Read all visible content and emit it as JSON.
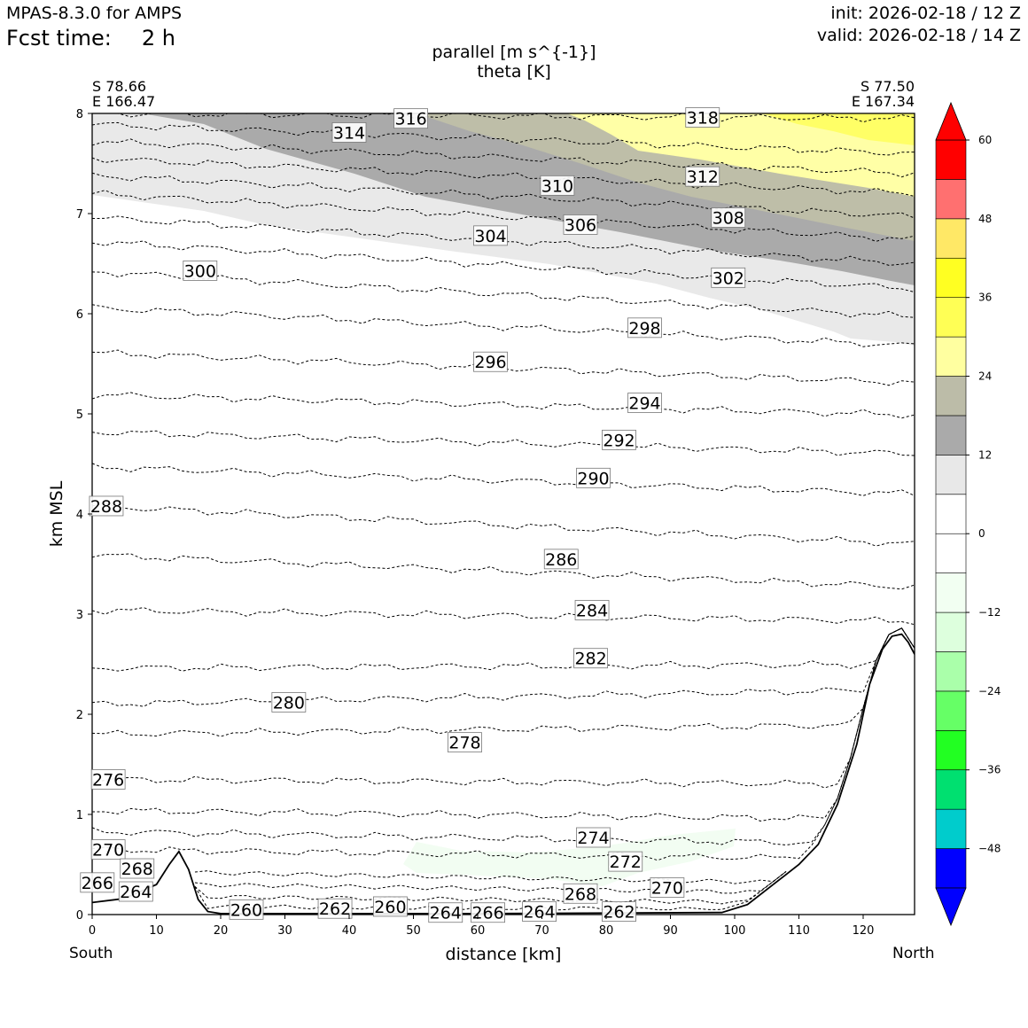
{
  "header": {
    "model": "MPAS-8.3.0 for AMPS",
    "fcst_label": "Fcst time:",
    "fcst_value": "2 h",
    "init": "init: 2026-02-18 / 12 Z",
    "valid": "valid: 2026-02-18 / 14 Z"
  },
  "endpoints": {
    "start_lat": "S 78.66",
    "start_lon": "E 166.47",
    "end_lat": "S 77.50",
    "end_lon": "E 167.34",
    "start_dir": "South",
    "end_dir": "North"
  },
  "chart_data": {
    "type": "cross-section (filled contour + line contour)",
    "title_lines": [
      "parallel [m s^{-1}]",
      "theta [K]"
    ],
    "xlabel": "distance [km]",
    "ylabel": "km MSL",
    "xlim": [
      0,
      128
    ],
    "ylim": [
      0,
      8
    ],
    "xticks": [
      "0",
      "10",
      "20",
      "30",
      "40",
      "50",
      "60",
      "70",
      "80",
      "90",
      "100",
      "110",
      "120"
    ],
    "yticks": [
      "0",
      "1",
      "2",
      "3",
      "4",
      "5",
      "6",
      "7",
      "8"
    ],
    "fill_field": "parallel wind speed [m s^-1]",
    "colorbar": {
      "levels": [
        -54,
        -48,
        -42,
        -36,
        -30,
        -24,
        -18,
        -12,
        -6,
        0,
        6,
        12,
        18,
        24,
        30,
        36,
        42,
        48,
        54,
        60
      ],
      "colors": [
        "#0000ff",
        "#00cccc",
        "#00e070",
        "#22ff22",
        "#66ff66",
        "#aaffaa",
        "#ddffdd",
        "#f2fff2",
        "#ffffff",
        "#ffffff",
        "#e8e8e8",
        "#aaaaaa",
        "#bcbca8",
        "#ffffa0",
        "#ffff55",
        "#ffff22",
        "#ffe866",
        "#ff7070",
        "#ff0000"
      ],
      "tick_labels": [
        "−48",
        "−36",
        "−24",
        "−12",
        "0",
        "12",
        "24",
        "36",
        "48",
        "60"
      ],
      "extend": "both"
    },
    "theta_labels": [
      {
        "value": "316",
        "x": 49.6,
        "z": 7.95
      },
      {
        "value": "318",
        "x": 95.0,
        "z": 7.96
      },
      {
        "value": "314",
        "x": 40.0,
        "z": 7.81
      },
      {
        "value": "310",
        "x": 72.4,
        "z": 7.28
      },
      {
        "value": "312",
        "x": 95.0,
        "z": 7.37
      },
      {
        "value": "306",
        "x": 76.0,
        "z": 6.89
      },
      {
        "value": "308",
        "x": 99.0,
        "z": 6.96
      },
      {
        "value": "304",
        "x": 62.0,
        "z": 6.78
      },
      {
        "value": "300",
        "x": 16.8,
        "z": 6.43
      },
      {
        "value": "302",
        "x": 99.0,
        "z": 6.36
      },
      {
        "value": "298",
        "x": 86.0,
        "z": 5.86
      },
      {
        "value": "296",
        "x": 62.0,
        "z": 5.52
      },
      {
        "value": "294",
        "x": 86.0,
        "z": 5.11
      },
      {
        "value": "292",
        "x": 82.0,
        "z": 4.74
      },
      {
        "value": "290",
        "x": 78.0,
        "z": 4.36
      },
      {
        "value": "288",
        "x": 2.2,
        "z": 4.08
      },
      {
        "value": "286",
        "x": 73.0,
        "z": 3.55
      },
      {
        "value": "284",
        "x": 77.8,
        "z": 3.04
      },
      {
        "value": "282",
        "x": 77.6,
        "z": 2.56
      },
      {
        "value": "280",
        "x": 30.6,
        "z": 2.12
      },
      {
        "value": "278",
        "x": 58.0,
        "z": 1.72
      },
      {
        "value": "276",
        "x": 2.5,
        "z": 1.35
      },
      {
        "value": "274",
        "x": 78.0,
        "z": 0.77
      },
      {
        "value": "272",
        "x": 83.0,
        "z": 0.53
      },
      {
        "value": "270",
        "x": 2.5,
        "z": 0.65
      },
      {
        "value": "270",
        "x": 89.5,
        "z": 0.27
      },
      {
        "value": "268",
        "x": 7.0,
        "z": 0.46
      },
      {
        "value": "268",
        "x": 76.0,
        "z": 0.21
      },
      {
        "value": "266",
        "x": 0.8,
        "z": 0.32
      },
      {
        "value": "264",
        "x": 6.8,
        "z": 0.23
      },
      {
        "value": "260",
        "x": 24.0,
        "z": 0.05
      },
      {
        "value": "262",
        "x": 37.8,
        "z": 0.06
      },
      {
        "value": "260",
        "x": 46.4,
        "z": 0.08
      },
      {
        "value": "264",
        "x": 55.0,
        "z": 0.02
      },
      {
        "value": "266",
        "x": 61.6,
        "z": 0.02
      },
      {
        "value": "264",
        "x": 69.6,
        "z": 0.03
      },
      {
        "value": "262",
        "x": 82.0,
        "z": 0.03
      }
    ],
    "theta_lines": [
      {
        "theta": 316,
        "z_left": 8.0,
        "z_right": 7.95
      },
      {
        "theta": 314,
        "z_left": 7.89,
        "z_right": 7.6
      },
      {
        "theta": 312,
        "z_left": 7.72,
        "z_right": 7.4
      },
      {
        "theta": 310,
        "z_left": 7.55,
        "z_right": 7.2
      },
      {
        "theta": 308,
        "z_left": 7.38,
        "z_right": 6.97
      },
      {
        "theta": 306,
        "z_left": 7.2,
        "z_right": 6.74
      },
      {
        "theta": 304,
        "z_left": 6.96,
        "z_right": 6.5
      },
      {
        "theta": 302,
        "z_left": 6.72,
        "z_right": 6.25
      },
      {
        "theta": 300,
        "z_left": 6.42,
        "z_right": 5.97
      },
      {
        "theta": 298,
        "z_left": 6.06,
        "z_right": 5.68
      },
      {
        "theta": 296,
        "z_left": 5.61,
        "z_right": 5.31
      },
      {
        "theta": 294,
        "z_left": 5.19,
        "z_right": 4.99
      },
      {
        "theta": 292,
        "z_left": 4.82,
        "z_right": 4.6
      },
      {
        "theta": 290,
        "z_left": 4.47,
        "z_right": 4.2
      },
      {
        "theta": 288,
        "z_left": 4.08,
        "z_right": 3.7
      },
      {
        "theta": 286,
        "z_left": 3.59,
        "z_right": 3.27
      },
      {
        "theta": 284,
        "z_left": 3.04,
        "z_right": 2.93
      },
      {
        "theta": 282,
        "z_left": 2.46,
        "z_right": 2.5
      },
      {
        "theta": 280,
        "z_left": 2.1,
        "z_right": 2.25
      },
      {
        "theta": 278,
        "z_left": 1.8,
        "z_right": 1.9
      },
      {
        "theta": 276,
        "z_left": 1.35,
        "z_right": 1.3
      },
      {
        "theta": 274,
        "z_left": 1.04,
        "z_right": 0.95
      },
      {
        "theta": 272,
        "z_left": 0.83,
        "z_right": 0.7
      },
      {
        "theta": 270,
        "z_left": 0.65,
        "z_right": 0.55
      }
    ],
    "terrain": [
      [
        0,
        0.12
      ],
      [
        5,
        0.16
      ],
      [
        10,
        0.3
      ],
      [
        12,
        0.5
      ],
      [
        13.5,
        0.63
      ],
      [
        15,
        0.45
      ],
      [
        16.5,
        0.15
      ],
      [
        18,
        0.03
      ],
      [
        20,
        0.01
      ],
      [
        60,
        0.01
      ],
      [
        98,
        0.02
      ],
      [
        102,
        0.1
      ],
      [
        106,
        0.3
      ],
      [
        110,
        0.5
      ],
      [
        113,
        0.7
      ],
      [
        116,
        1.1
      ],
      [
        119,
        1.7
      ],
      [
        121,
        2.3
      ],
      [
        123,
        2.65
      ],
      [
        124.5,
        2.78
      ],
      [
        126,
        2.8
      ],
      [
        127,
        2.72
      ],
      [
        128,
        2.6
      ]
    ]
  }
}
